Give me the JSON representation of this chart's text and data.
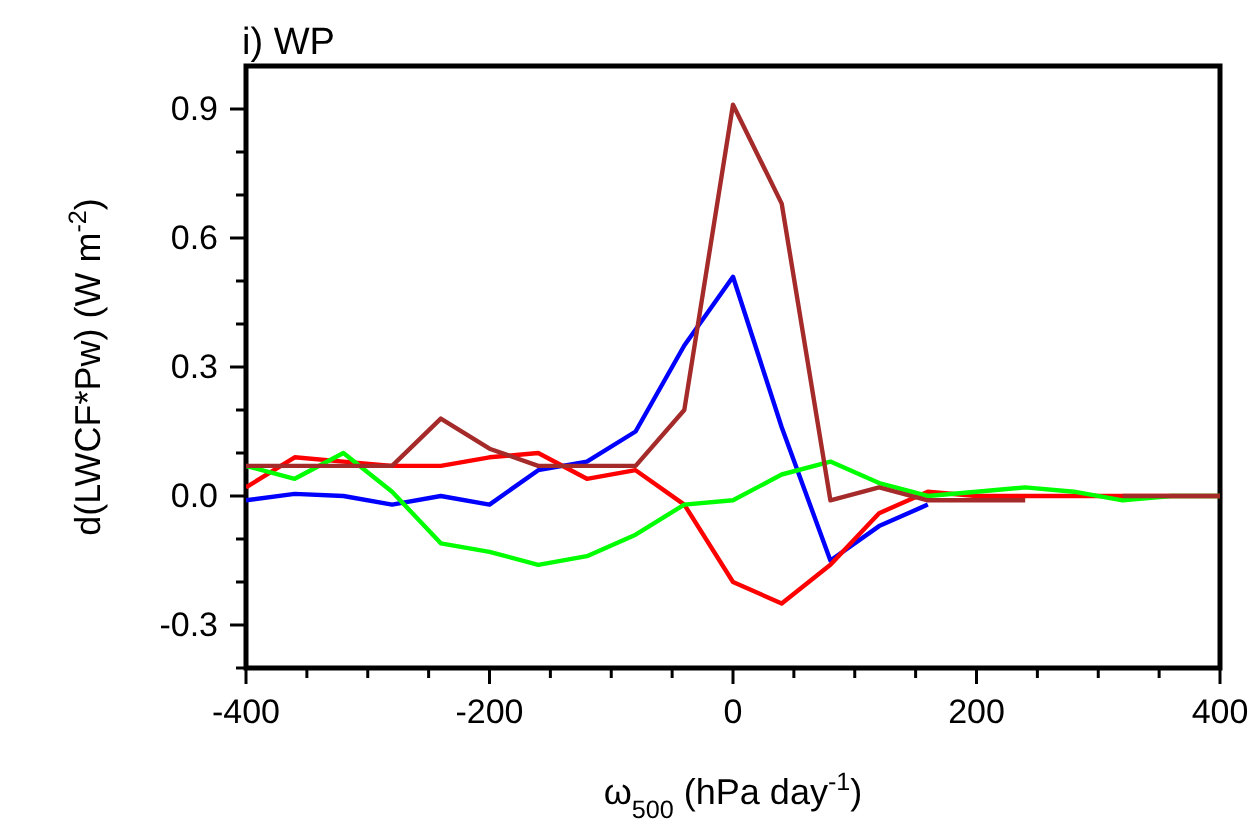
{
  "chart_data": {
    "type": "line",
    "title": "i) WP",
    "xlabel": "ω$_{500}$ (hPa day$^{-1}$)",
    "ylabel": "d(LWCF*Pw) (W m$^{-2}$)",
    "x": [
      -400,
      -360,
      -320,
      -280,
      -240,
      -200,
      -160,
      -120,
      -80,
      -40,
      0,
      40,
      80,
      120,
      160,
      200,
      240,
      280,
      320,
      360,
      400
    ],
    "series": [
      {
        "color": "#0000ff",
        "values": [
          -0.01,
          0.005,
          0,
          -0.02,
          0,
          -0.02,
          0.06,
          0.08,
          0.15,
          0.35,
          0.51,
          0.16,
          -0.15,
          -0.07,
          -0.02,
          null,
          null,
          null,
          null,
          null,
          null
        ]
      },
      {
        "color": "#ff0000",
        "values": [
          0.02,
          0.09,
          0.08,
          0.07,
          0.07,
          0.09,
          0.1,
          0.04,
          0.06,
          -0.02,
          -0.2,
          -0.25,
          -0.16,
          -0.04,
          0.01,
          0,
          0,
          0,
          0,
          0,
          0
        ]
      },
      {
        "color": "#00ff00",
        "values": [
          0.07,
          0.04,
          0.1,
          0.01,
          -0.11,
          -0.13,
          -0.16,
          -0.14,
          -0.09,
          -0.02,
          -0.01,
          0.05,
          0.08,
          0.03,
          0,
          0.01,
          0.02,
          0.01,
          -0.01,
          0,
          0
        ]
      },
      {
        "color": "#a52a2a",
        "values": [
          0.07,
          0.07,
          0.07,
          0.07,
          0.18,
          0.11,
          0.07,
          0.07,
          0.07,
          0.2,
          0.91,
          0.68,
          -0.01,
          0.02,
          -0.01,
          -0.01,
          -0.01,
          null,
          0,
          0,
          0
        ]
      }
    ],
    "xlim": [
      -400,
      400
    ],
    "ylim": [
      -0.4,
      1.0
    ],
    "xticks": [
      -400,
      {
        "value": -350,
        "label": null
      },
      {
        "value": -300,
        "label": null
      },
      {
        "value": -250,
        "label": null
      },
      -200,
      {
        "value": -150,
        "label": null
      },
      {
        "value": -100,
        "label": null
      },
      {
        "value": -50,
        "label": null
      },
      0,
      {
        "value": 50,
        "label": null
      },
      {
        "value": 100,
        "label": null
      },
      {
        "value": 150,
        "label": null
      },
      200,
      {
        "value": 250,
        "label": null
      },
      {
        "value": 300,
        "label": null
      },
      {
        "value": 350,
        "label": null
      },
      400
    ],
    "yticks": [
      {
        "value": -0.4,
        "label": null
      },
      -0.3,
      {
        "value": -0.2,
        "label": null
      },
      {
        "value": -0.1,
        "label": null
      },
      {
        "value": 0,
        "label": "0.0"
      },
      {
        "value": 0.1,
        "label": null
      },
      {
        "value": 0.2,
        "label": null
      },
      0.3,
      {
        "value": 0.4,
        "label": null
      },
      {
        "value": 0.5,
        "label": null
      },
      0.6,
      {
        "value": 0.7,
        "label": null
      },
      {
        "value": 0.8,
        "label": null
      },
      0.9
    ],
    "grid": false,
    "marker": "none",
    "line_style": "solid"
  }
}
